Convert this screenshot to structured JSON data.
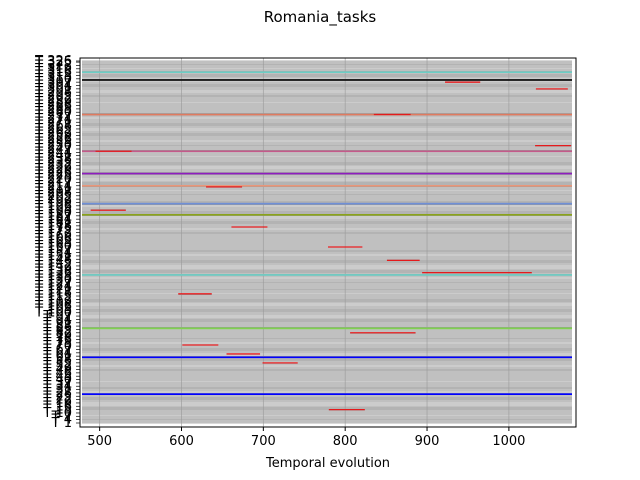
{
  "chart_data": {
    "type": "timeline",
    "title": "Romania_tasks",
    "xlabel": "Temporal evolution",
    "ylabel": "",
    "xlim": [
      476,
      1082
    ],
    "x_ticks": [
      500,
      600,
      700,
      800,
      900,
      1000
    ],
    "x_tick_labels": [
      "500",
      "600",
      "700",
      "800",
      "900",
      "1000"
    ],
    "grid": true,
    "y_first_label": "T 1",
    "y_last_label": "T 326",
    "task_count": 326,
    "highlighted_tasks": [
      {
        "name": "T 13",
        "color": "#e41a1c",
        "start": 780,
        "end": 824
      },
      {
        "name": "T 55",
        "color": "#e41a1c",
        "start": 699,
        "end": 742
      },
      {
        "name": "T 63",
        "color": "#e41a1c",
        "start": 655,
        "end": 696
      },
      {
        "name": "T 71",
        "color": "#e41a1c",
        "start": 601,
        "end": 645
      },
      {
        "name": "T 82",
        "color": "#e41a1c",
        "start": 806,
        "end": 886
      },
      {
        "name": "T 117",
        "color": "#e41a1c",
        "start": 596,
        "end": 637
      },
      {
        "name": "T 136",
        "color": "#e41a1c",
        "start": 894,
        "end": 1028
      },
      {
        "name": "T 147",
        "color": "#e41a1c",
        "start": 851,
        "end": 891
      },
      {
        "name": "T 159",
        "color": "#e41a1c",
        "start": 779,
        "end": 821
      },
      {
        "name": "T 177",
        "color": "#e41a1c",
        "start": 661,
        "end": 705
      },
      {
        "name": "T 192",
        "color": "#e41a1c",
        "start": 489,
        "end": 532
      },
      {
        "name": "T 213",
        "color": "#e41a1c",
        "start": 630,
        "end": 674
      },
      {
        "name": "T 245",
        "color": "#e41a1c",
        "start": 495,
        "end": 539
      },
      {
        "name": "T 250",
        "color": "#e41a1c",
        "start": 1032,
        "end": 1076
      },
      {
        "name": "T 278",
        "color": "#e41a1c",
        "start": 835,
        "end": 880
      },
      {
        "name": "T 301",
        "color": "#e41a1c",
        "start": 1033,
        "end": 1072
      },
      {
        "name": "T 307",
        "color": "#e41a1c",
        "start": 922,
        "end": 965
      }
    ],
    "full_span_tasks": [
      {
        "name": "T 27",
        "color": "#0000ff"
      },
      {
        "name": "T 60",
        "color": "#0000ff"
      },
      {
        "name": "T 86",
        "color": "#7fd14f"
      },
      {
        "name": "T 134",
        "color": "#6ccfc6"
      },
      {
        "name": "T 188",
        "color": "#8aa31a"
      },
      {
        "name": "T 198",
        "color": "#6f8fd6"
      },
      {
        "name": "T 214",
        "color": "#e8967a"
      },
      {
        "name": "T 225",
        "color": "#8e1cc0"
      },
      {
        "name": "T 245",
        "color": "#c45a8a"
      },
      {
        "name": "T 278",
        "color": "#e07a5f"
      },
      {
        "name": "T 309",
        "color": "#111111"
      },
      {
        "name": "T 316",
        "color": "#6ccfc6"
      }
    ]
  }
}
